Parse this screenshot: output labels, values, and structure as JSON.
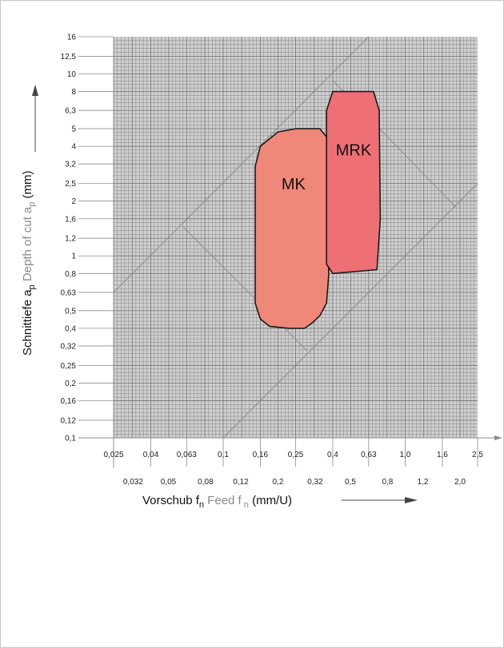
{
  "chart_data": {
    "type": "area",
    "x_scale": "log",
    "y_scale": "log",
    "xlim": [
      0.025,
      2.5
    ],
    "ylim": [
      0.1,
      16
    ],
    "grid": true,
    "x_ticks_top": [
      "0,025",
      "0,04",
      "0,063",
      "0,1",
      "0,16",
      "0,25",
      "0,4",
      "0,63",
      "1,0",
      "1,6",
      "2,5"
    ],
    "x_ticks_top_values": [
      0.025,
      0.04,
      0.063,
      0.1,
      0.16,
      0.25,
      0.4,
      0.63,
      1.0,
      1.6,
      2.5
    ],
    "x_ticks_bottom": [
      "0,032",
      "0,05",
      "0,08",
      "0,12",
      "0,2",
      "0,32",
      "0,5",
      "0,8",
      "1,2",
      "2,0"
    ],
    "x_ticks_bottom_values": [
      0.032,
      0.05,
      0.08,
      0.125,
      0.2,
      0.32,
      0.5,
      0.8,
      1.25,
      2.0
    ],
    "y_ticks": [
      "16",
      "12,5",
      "10",
      "8",
      "6,3",
      "5",
      "4",
      "3,2",
      "2,5",
      "2",
      "1,6",
      "1,2",
      "1",
      "0,8",
      "0,63",
      "0,5",
      "0,4",
      "0,32",
      "0,25",
      "0,2",
      "0,16",
      "0,12",
      "0,1"
    ],
    "y_ticks_values": [
      16,
      12.5,
      10,
      8,
      6.3,
      5,
      4,
      3.2,
      2.5,
      2,
      1.6,
      1.25,
      1,
      0.8,
      0.63,
      0.5,
      0.4,
      0.32,
      0.25,
      0.2,
      0.16,
      0.125,
      0.1
    ],
    "ylabel": {
      "main": "Schnittiefe a",
      "sub": "p",
      "grey": " Depth of cut a",
      "grey_sub": "p",
      "unit": " (mm)"
    },
    "xlabel": {
      "main": "Vorschub f",
      "sub": "n",
      "grey": " Feed f",
      "grey_sub": " n",
      "unit": "  (mm/U)"
    },
    "diagonal_lines": [
      {
        "points": [
          [
            0.025,
            0.63
          ],
          [
            0.63,
            16
          ]
        ]
      },
      {
        "points": [
          [
            0.1,
            0.1
          ],
          [
            2.5,
            2.5
          ]
        ]
      }
    ],
    "diagonal_ticks": [
      {
        "points": [
          [
            0.06,
            1.45
          ],
          [
            0.29,
            0.3
          ]
        ]
      },
      {
        "points": [
          [
            0.4,
            9.2
          ],
          [
            1.9,
            1.85
          ]
        ]
      }
    ],
    "regions": [
      {
        "name": "MK",
        "color": "#ef8878",
        "points": [
          [
            0.15,
            3.1
          ],
          [
            0.16,
            4.0
          ],
          [
            0.2,
            4.8
          ],
          [
            0.25,
            5.0
          ],
          [
            0.34,
            5.0
          ],
          [
            0.37,
            4.5
          ],
          [
            0.38,
            0.79
          ],
          [
            0.37,
            0.55
          ],
          [
            0.34,
            0.47
          ],
          [
            0.31,
            0.43
          ],
          [
            0.28,
            0.4
          ],
          [
            0.23,
            0.4
          ],
          [
            0.18,
            0.41
          ],
          [
            0.16,
            0.45
          ],
          [
            0.15,
            0.55
          ]
        ]
      },
      {
        "name": "MRK",
        "color": "#ee7075",
        "points": [
          [
            0.37,
            6.3
          ],
          [
            0.4,
            8.0
          ],
          [
            0.67,
            8.0
          ],
          [
            0.72,
            6.3
          ],
          [
            0.73,
            1.6
          ],
          [
            0.7,
            0.84
          ],
          [
            0.4,
            0.8
          ],
          [
            0.37,
            0.9
          ]
        ]
      }
    ]
  },
  "colors": {
    "plot_bg": "#cfcfcf",
    "grid": "#7d7d7d",
    "diagonal": "#8c8c8c",
    "axis": "#8c8c8c",
    "region_edge": "#1a1a1a"
  }
}
